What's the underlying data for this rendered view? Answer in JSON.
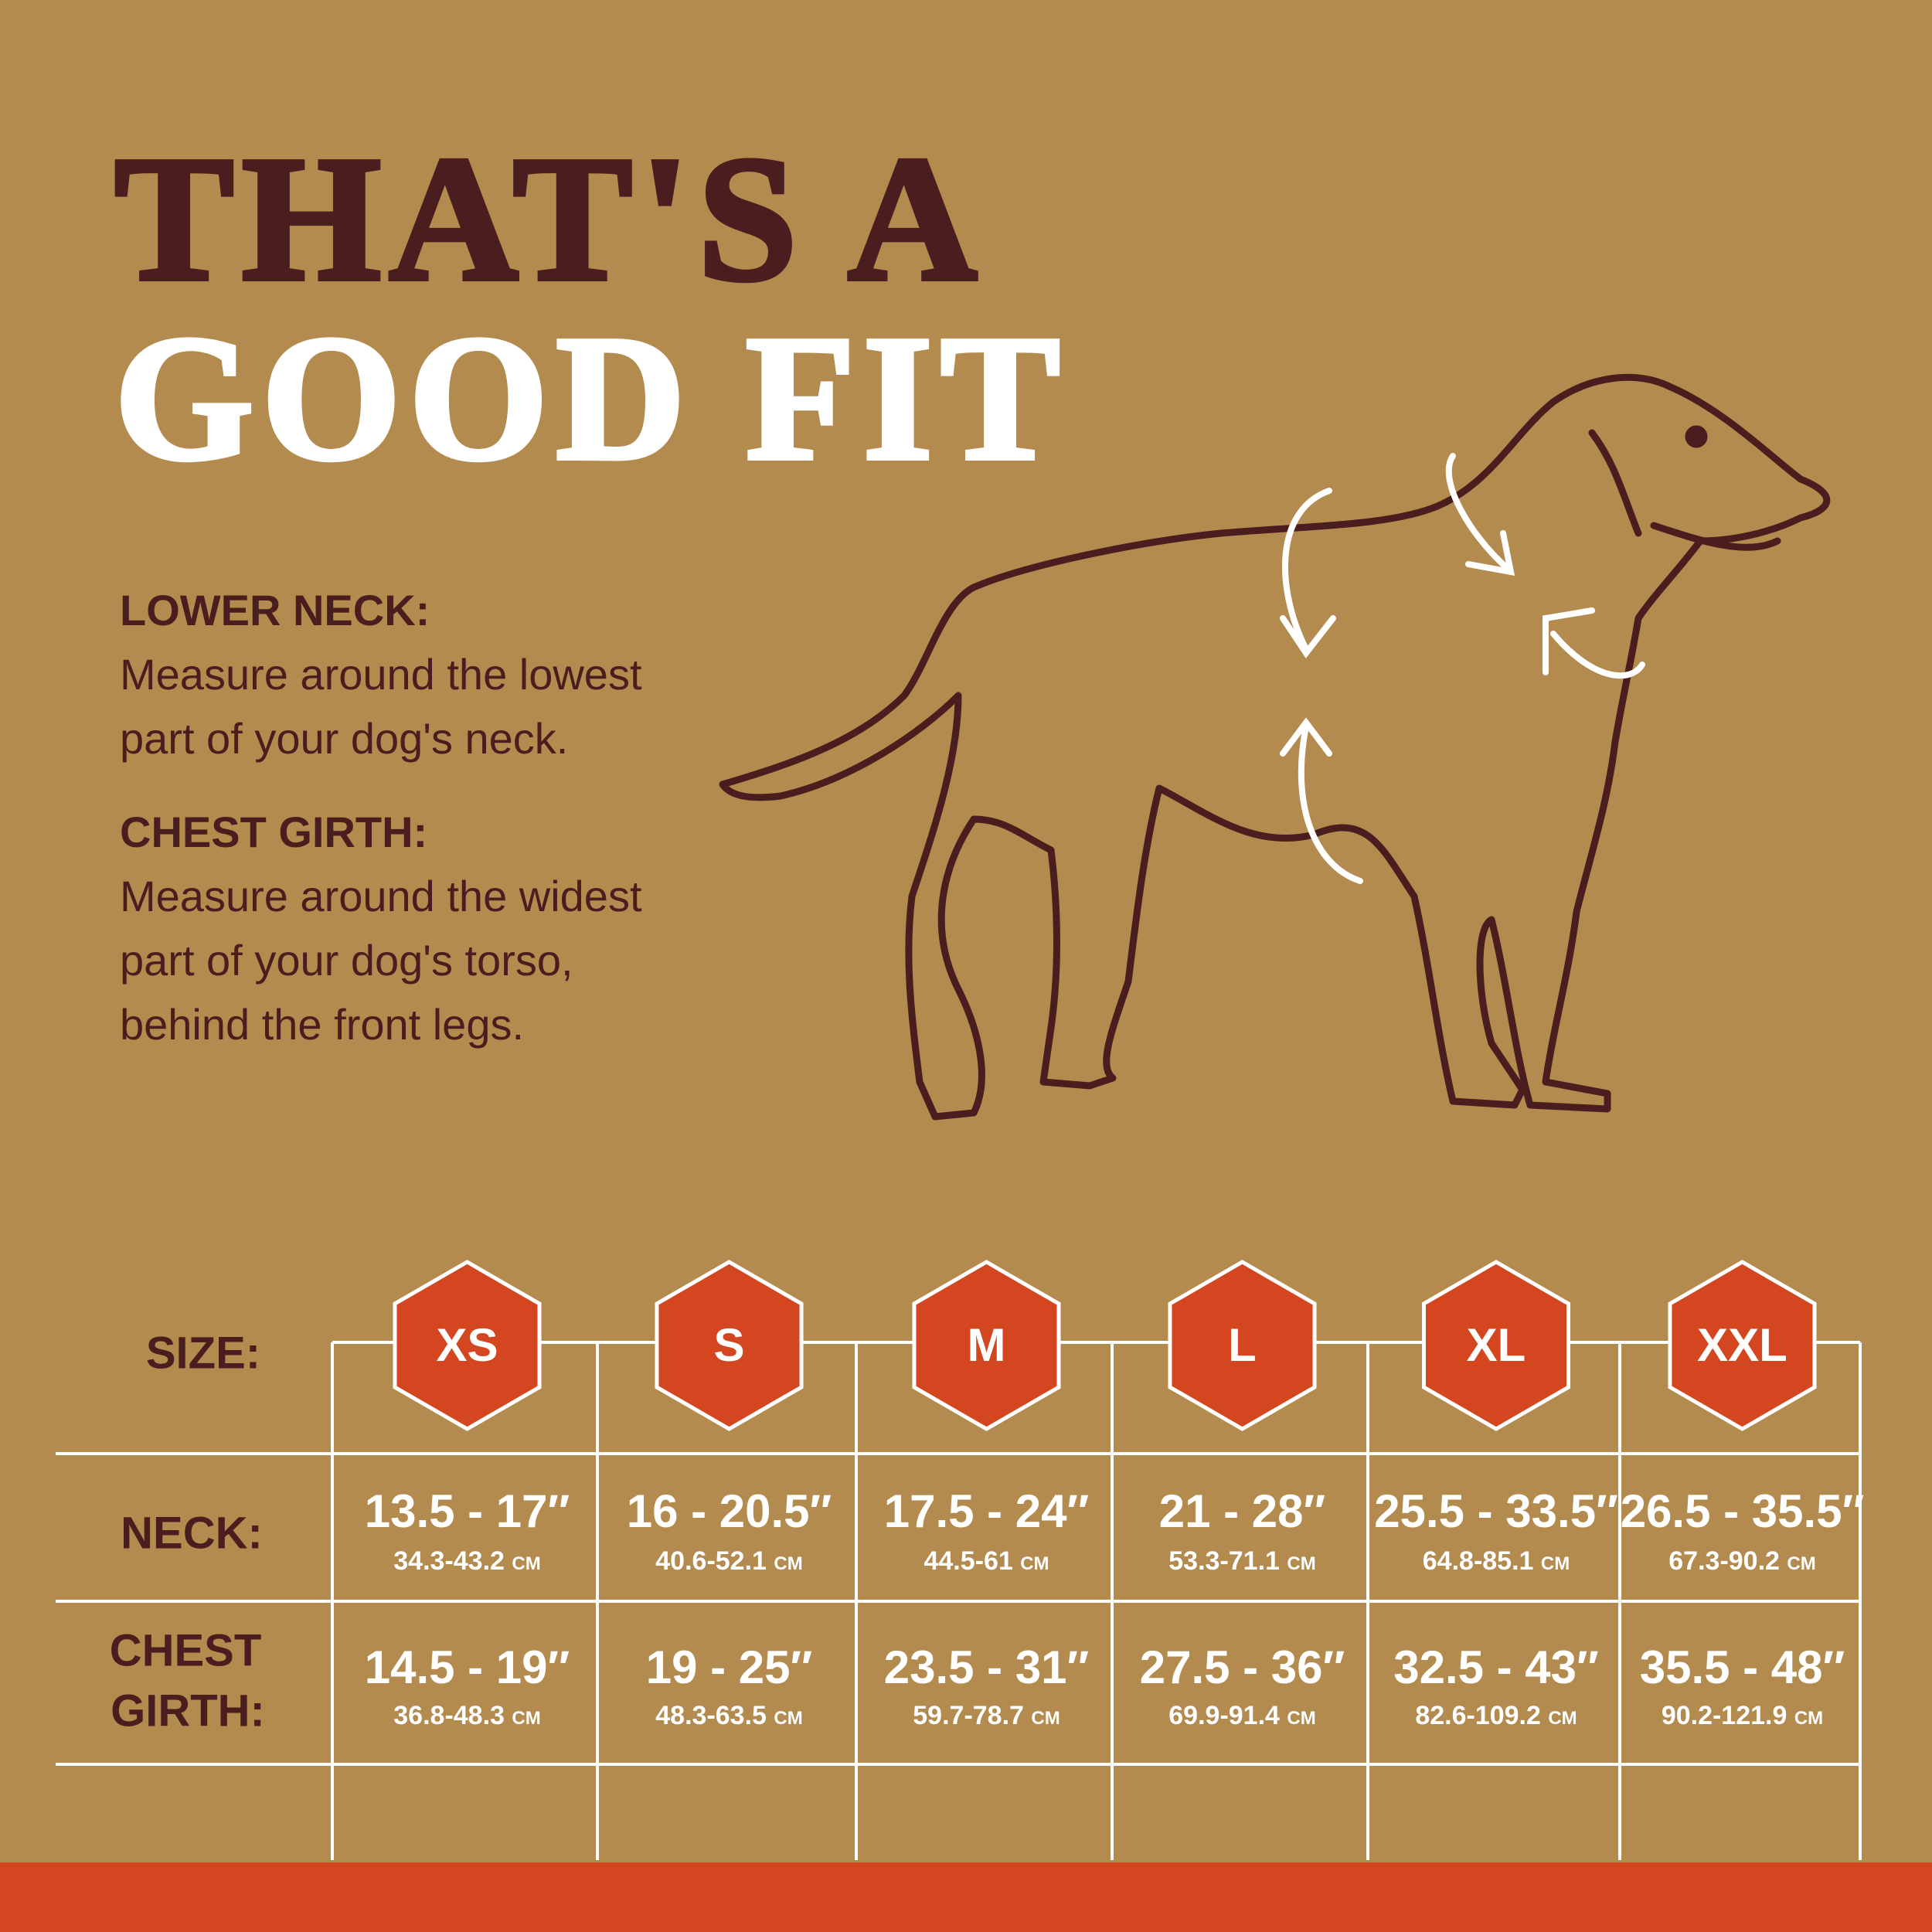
{
  "header": {
    "title_line1": "THAT'S A",
    "title_line2": "GOOD FIT"
  },
  "instructions": [
    {
      "heading": "LOWER NECK:",
      "text": "Measure around the lowest part of your dog's neck."
    },
    {
      "heading": "CHEST GIRTH:",
      "text": "Measure around the widest part of your dog's torso, behind the front legs."
    }
  ],
  "table": {
    "size_label": "SIZE:",
    "neck_label": "NECK:",
    "chest_label": [
      "CHEST",
      "GIRTH:"
    ],
    "sizes": [
      "XS",
      "S",
      "M",
      "L",
      "XL",
      "XXL"
    ],
    "neck": [
      {
        "inches": "13.5 - 17″",
        "cm": "34.3-43.2 cm"
      },
      {
        "inches": "16 - 20.5″",
        "cm": "40.6-52.1 cm"
      },
      {
        "inches": "17.5 - 24″",
        "cm": "44.5-61 cm"
      },
      {
        "inches": "21 - 28″",
        "cm": "53.3-71.1 cm"
      },
      {
        "inches": "25.5 - 33.5″",
        "cm": "64.8-85.1 cm"
      },
      {
        "inches": "26.5 - 35.5″",
        "cm": "67.3-90.2 cm"
      }
    ],
    "chest": [
      {
        "inches": "14.5 - 19″",
        "cm": "36.8-48.3 cm"
      },
      {
        "inches": "19 - 25″",
        "cm": "48.3-63.5 cm"
      },
      {
        "inches": "23.5 - 31″",
        "cm": "59.7-78.7 cm"
      },
      {
        "inches": "27.5 - 36″",
        "cm": "69.9-91.4 cm"
      },
      {
        "inches": "32.5 - 43″",
        "cm": "82.6-109.2 cm"
      },
      {
        "inches": "35.5 - 48″",
        "cm": "90.2-121.9 cm"
      }
    ]
  }
}
